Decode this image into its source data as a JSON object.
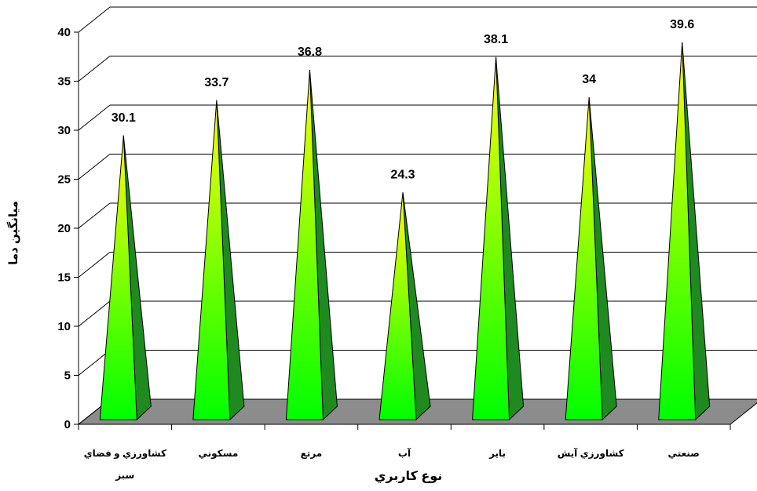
{
  "chart_data": {
    "type": "bar",
    "style": "3d-pyramid",
    "title": "",
    "xlabel": "نوع کاربري",
    "ylabel": "ميانگين دما",
    "categories": [
      "كشاورزي و فضاي سبز",
      "مسكوني",
      "مرتع",
      "آب",
      "باير",
      "كشاورزي آيش",
      "صنعتي"
    ],
    "category_lines": [
      [
        "كشاورزي و فضاي",
        "سبز"
      ],
      [
        "مسكوني"
      ],
      [
        "مرتع"
      ],
      [
        "آب"
      ],
      [
        "باير"
      ],
      [
        "كشاورزي آيش"
      ],
      [
        "صنعتي"
      ]
    ],
    "values": [
      30.1,
      33.7,
      36.8,
      24.3,
      38.1,
      34,
      39.6
    ],
    "value_labels": [
      "30.1",
      "33.7",
      "36.8",
      "24.3",
      "38.1",
      "34",
      "39.6"
    ],
    "ylim": [
      0,
      40
    ],
    "yticks": [
      "0",
      "5",
      "10",
      "15",
      "20",
      "25",
      "30",
      "35",
      "40"
    ],
    "grid": true,
    "legend": "none",
    "colors": {
      "bar_top": "#ffff00",
      "bar_bottom": "#00ff00",
      "bar_side": "#1f8a1f",
      "floor": "#8c8c8c",
      "grid": "#000000"
    }
  }
}
